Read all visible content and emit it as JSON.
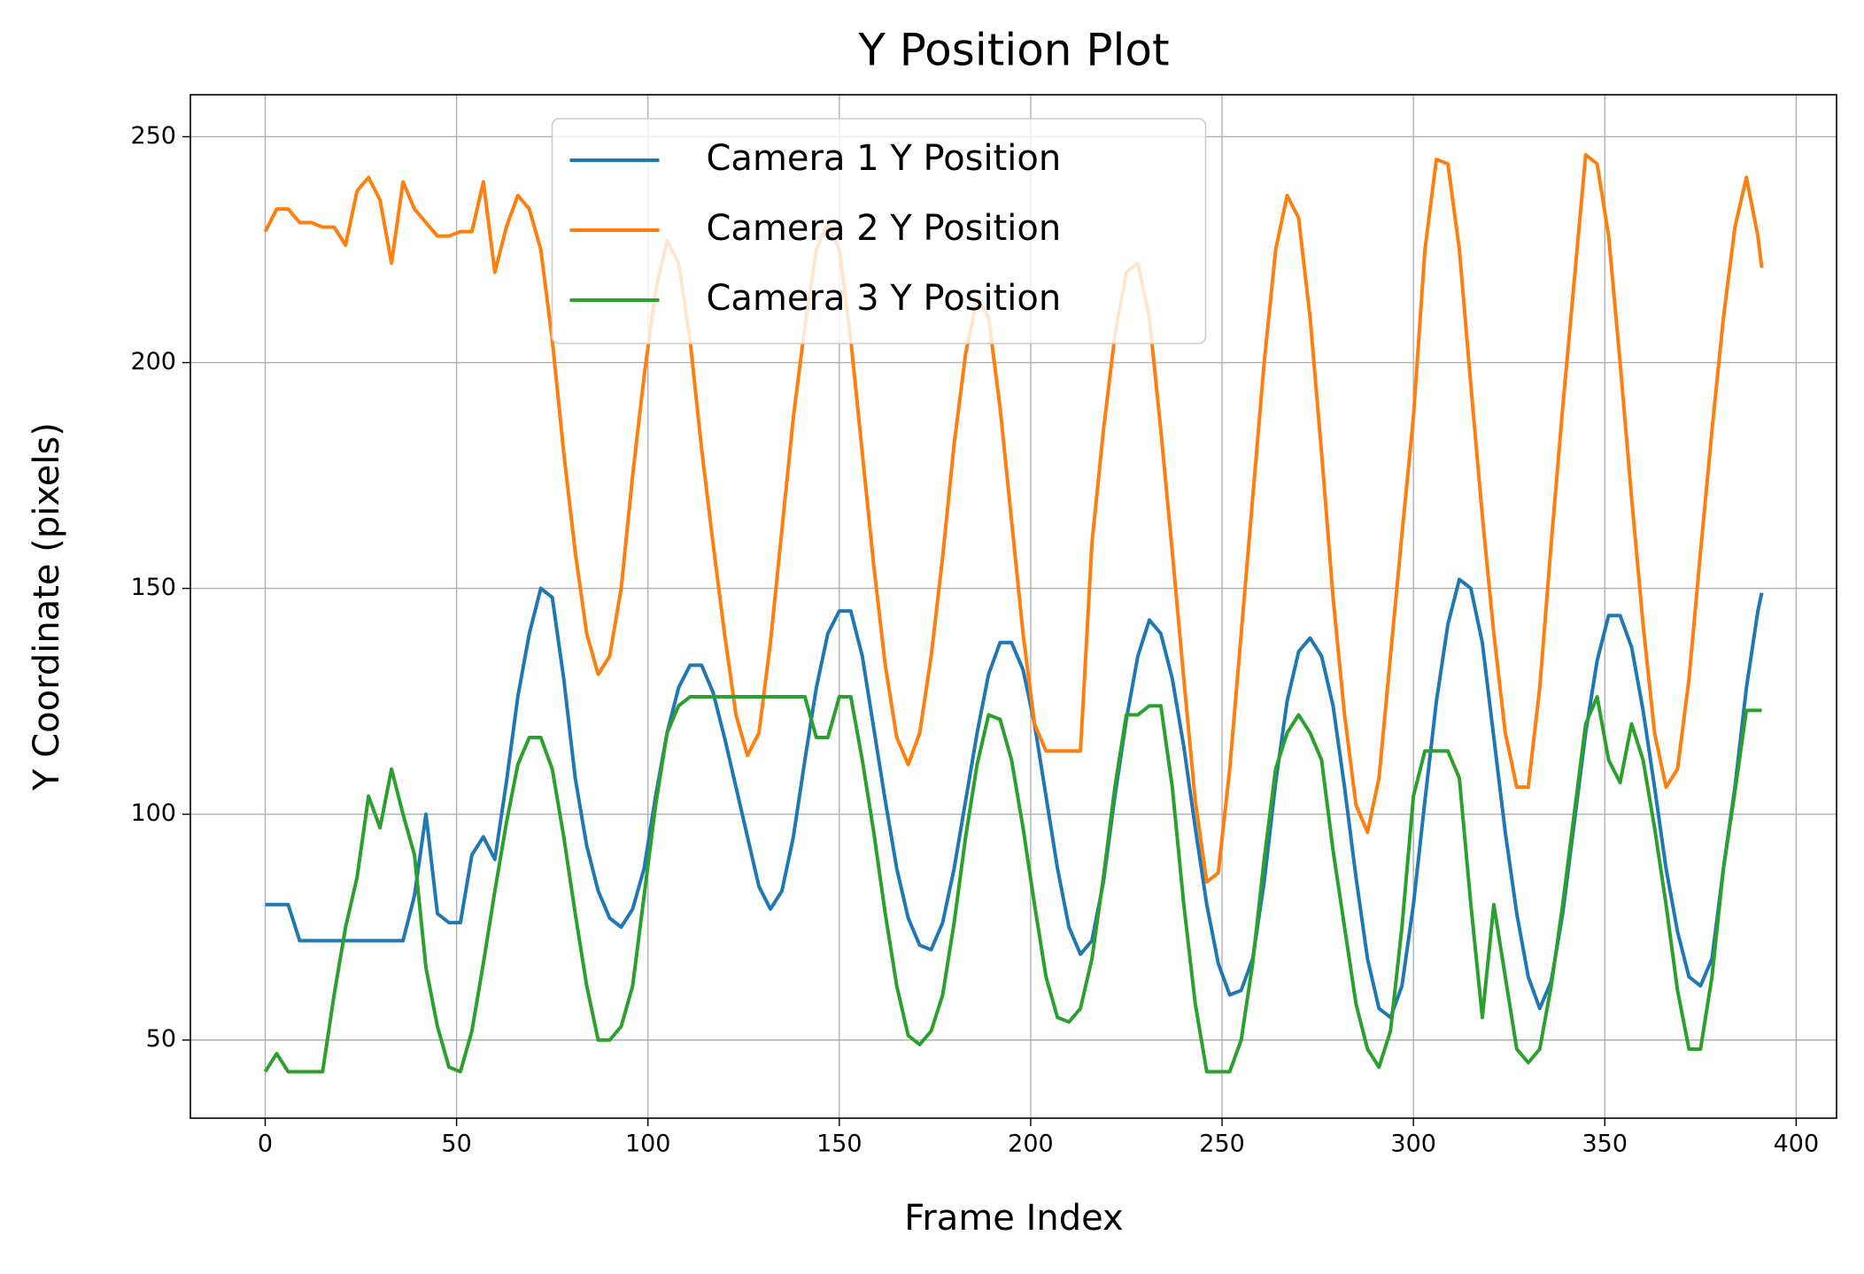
{
  "chart_data": {
    "type": "line",
    "title": "Y Position Plot",
    "x_label": "Frame Index",
    "y_label": "Y Coordinate (pixels)",
    "x": [
      0,
      3,
      6,
      9,
      12,
      15,
      18,
      21,
      24,
      27,
      30,
      33,
      36,
      39,
      42,
      45,
      48,
      51,
      54,
      57,
      60,
      63,
      66,
      69,
      72,
      75,
      78,
      81,
      84,
      87,
      90,
      93,
      96,
      99,
      102,
      105,
      108,
      111,
      114,
      117,
      120,
      123,
      126,
      129,
      132,
      135,
      138,
      141,
      144,
      147,
      150,
      153,
      156,
      159,
      162,
      165,
      168,
      171,
      174,
      177,
      180,
      183,
      186,
      189,
      192,
      195,
      198,
      201,
      204,
      207,
      210,
      213,
      216,
      219,
      222,
      225,
      228,
      231,
      234,
      237,
      240,
      243,
      246,
      249,
      252,
      255,
      258,
      261,
      264,
      267,
      270,
      273,
      276,
      279,
      282,
      285,
      288,
      291,
      294,
      297,
      300,
      303,
      306,
      309,
      312,
      315,
      318,
      321,
      324,
      327,
      330,
      333,
      336,
      339,
      342,
      345,
      348,
      351,
      354,
      357,
      360,
      363,
      366,
      369,
      372,
      375,
      378,
      381,
      384,
      387,
      390,
      391
    ],
    "series": [
      {
        "name": "Camera 1 Y Position",
        "color": "#1f77b4",
        "values": [
          80,
          80,
          80,
          72,
          72,
          72,
          72,
          72,
          72,
          72,
          72,
          72,
          72,
          82,
          100,
          78,
          76,
          76,
          91,
          95,
          90,
          107,
          126,
          140,
          150,
          148,
          130,
          108,
          93,
          83,
          77,
          75,
          79,
          88,
          104,
          118,
          128,
          133,
          133,
          127,
          117,
          106,
          95,
          84,
          79,
          83,
          95,
          112,
          128,
          140,
          145,
          145,
          135,
          119,
          103,
          88,
          77,
          71,
          70,
          76,
          88,
          103,
          118,
          131,
          138,
          138,
          132,
          120,
          104,
          88,
          75,
          69,
          72,
          85,
          104,
          121,
          135,
          143,
          140,
          130,
          115,
          97,
          80,
          67,
          60,
          61,
          68,
          85,
          107,
          125,
          136,
          139,
          135,
          124,
          106,
          86,
          68,
          57,
          55,
          62,
          80,
          103,
          125,
          142,
          152,
          150,
          138,
          117,
          96,
          78,
          64,
          57,
          63,
          78,
          98,
          118,
          134,
          144,
          144,
          137,
          123,
          106,
          88,
          74,
          64,
          62,
          68,
          88,
          106,
          128,
          145,
          149
        ]
      },
      {
        "name": "Camera 2 Y Position",
        "color": "#ff7f0e",
        "values": [
          229,
          234,
          234,
          231,
          231,
          230,
          230,
          226,
          238,
          241,
          236,
          222,
          240,
          234,
          231,
          228,
          228,
          229,
          229,
          240,
          220,
          230,
          237,
          234,
          225,
          205,
          180,
          158,
          140,
          131,
          135,
          150,
          175,
          197,
          216,
          227,
          222,
          205,
          181,
          160,
          140,
          122,
          113,
          118,
          138,
          163,
          188,
          208,
          225,
          231,
          225,
          205,
          180,
          155,
          133,
          117,
          111,
          118,
          135,
          157,
          182,
          202,
          214,
          210,
          190,
          165,
          140,
          120,
          114,
          114,
          114,
          114,
          160,
          185,
          206,
          220,
          222,
          210,
          185,
          158,
          130,
          103,
          85,
          87,
          110,
          140,
          170,
          200,
          225,
          237,
          232,
          210,
          180,
          148,
          122,
          102,
          96,
          108,
          135,
          162,
          188,
          225,
          245,
          244,
          225,
          195,
          166,
          140,
          118,
          106,
          106,
          128,
          160,
          190,
          218,
          246,
          244,
          228,
          200,
          170,
          142,
          118,
          106,
          110,
          130,
          158,
          185,
          210,
          230,
          241,
          228,
          221
        ]
      },
      {
        "name": "Camera 3 Y Position",
        "color": "#2ca02c",
        "values": [
          43,
          47,
          43,
          43,
          43,
          43,
          60,
          75,
          86,
          104,
          97,
          110,
          100,
          91,
          66,
          53,
          44,
          43,
          52,
          67,
          83,
          98,
          111,
          117,
          117,
          110,
          95,
          78,
          62,
          50,
          50,
          53,
          62,
          82,
          102,
          118,
          124,
          126,
          126,
          126,
          126,
          126,
          126,
          126,
          126,
          126,
          126,
          126,
          117,
          117,
          126,
          126,
          112,
          96,
          78,
          62,
          51,
          49,
          52,
          60,
          76,
          95,
          111,
          122,
          121,
          112,
          97,
          80,
          64,
          55,
          54,
          57,
          68,
          86,
          106,
          122,
          122,
          124,
          124,
          106,
          80,
          58,
          43,
          43,
          43,
          50,
          67,
          90,
          110,
          118,
          122,
          118,
          112,
          92,
          75,
          58,
          48,
          44,
          52,
          75,
          104,
          114,
          114,
          114,
          108,
          80,
          55,
          80,
          64,
          48,
          45,
          48,
          62,
          80,
          100,
          120,
          126,
          112,
          107,
          120,
          112,
          97,
          80,
          61,
          48,
          48,
          64,
          88,
          105,
          123,
          123,
          123
        ]
      }
    ],
    "xlim": [
      -19.55,
      410.55
    ],
    "ylim": [
      32.7,
      259.3
    ],
    "xticks": [
      0,
      50,
      100,
      150,
      200,
      250,
      300,
      350,
      400
    ],
    "yticks": [
      50,
      100,
      150,
      200,
      250
    ],
    "grid": true,
    "legend": "upper center"
  }
}
